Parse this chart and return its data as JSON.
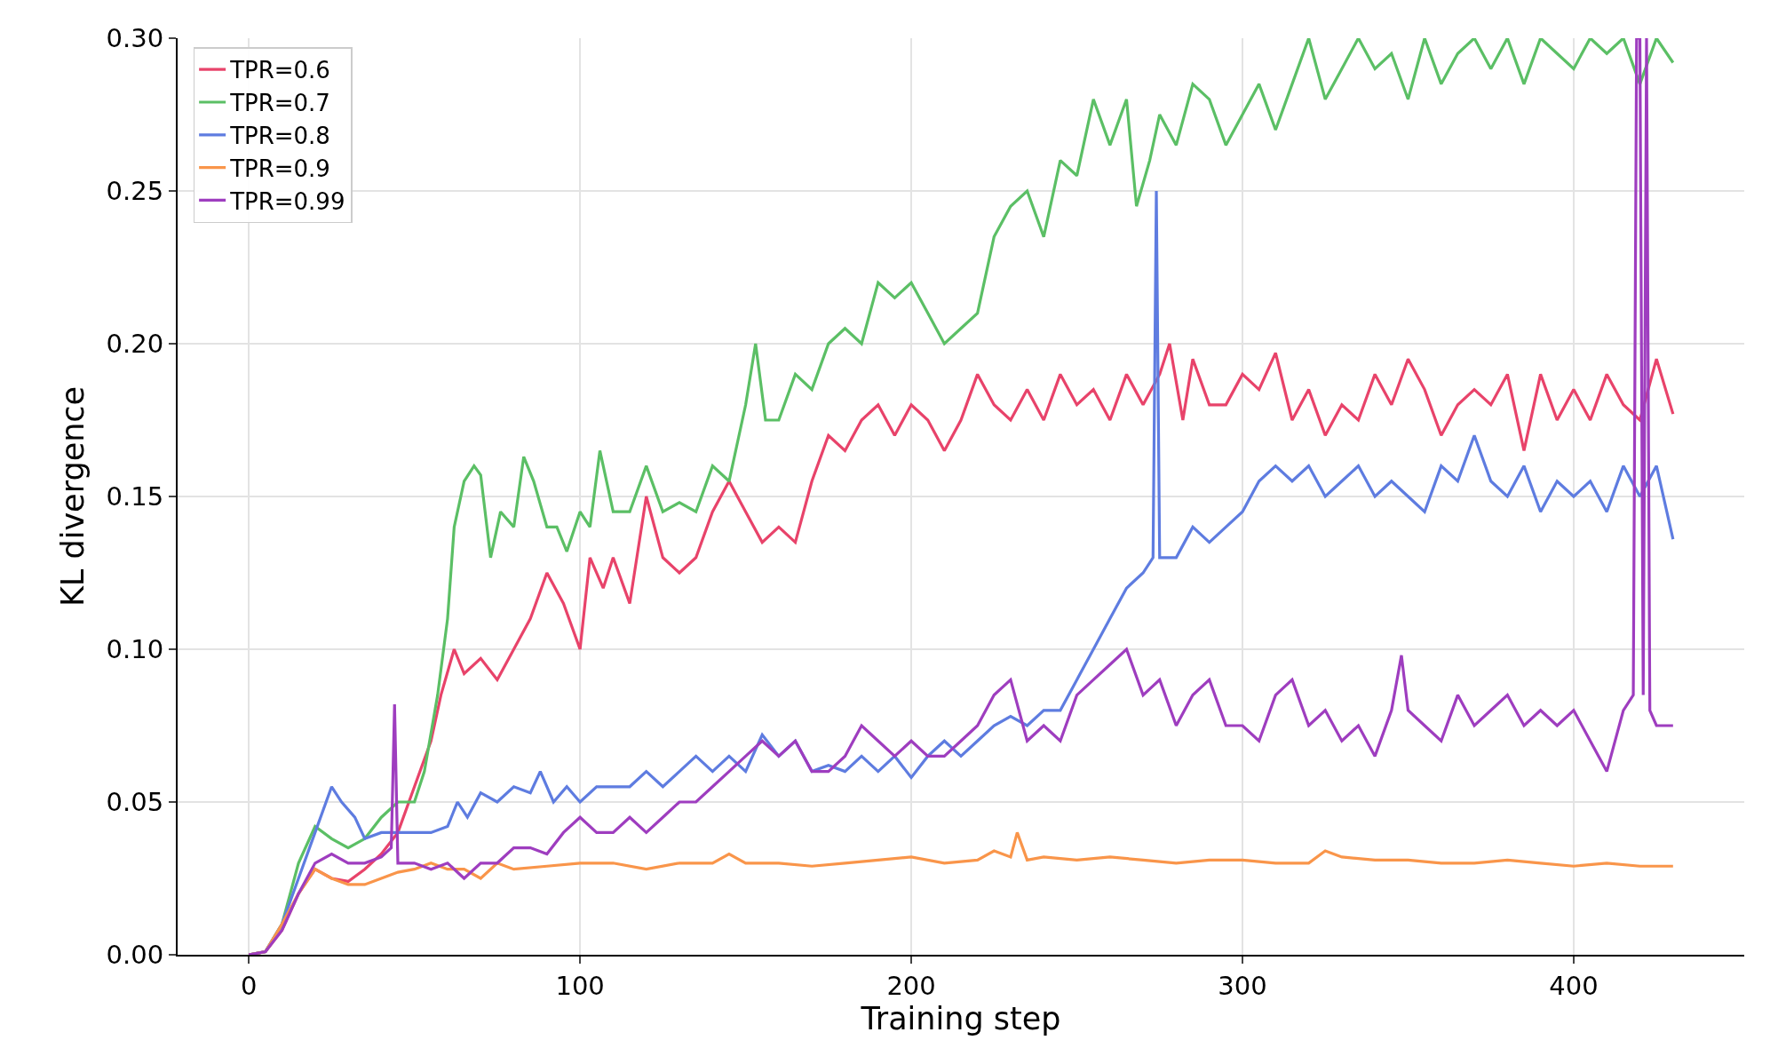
{
  "chart_data": {
    "type": "line",
    "xlabel": "Training step",
    "ylabel": "KL divergence",
    "xlim": [
      -21.5,
      451.5
    ],
    "xticks": [
      0,
      100,
      200,
      300,
      400
    ],
    "ylim": [
      0,
      0.3
    ],
    "yticks": [
      {
        "value": 0,
        "label": "0.00"
      },
      {
        "value": 0.05,
        "label": "0.05"
      },
      {
        "value": 0.1,
        "label": "0.10"
      },
      {
        "value": 0.15,
        "label": "0.15"
      },
      {
        "value": 0.2,
        "label": "0.20"
      },
      {
        "value": 0.25,
        "label": "0.25"
      },
      {
        "value": 0.3,
        "label": "0.30"
      }
    ],
    "grid": true,
    "legend": "top left",
    "line_style": "solid",
    "series": [
      {
        "name": "TPR=0.6",
        "color": "#e8436a",
        "x": [
          0,
          5,
          10,
          15,
          20,
          25,
          30,
          35,
          40,
          45,
          50,
          55,
          58,
          62,
          65,
          70,
          75,
          80,
          85,
          90,
          95,
          100,
          103,
          107,
          110,
          115,
          120,
          125,
          130,
          135,
          140,
          145,
          150,
          155,
          160,
          165,
          170,
          175,
          180,
          185,
          190,
          195,
          200,
          205,
          210,
          215,
          220,
          225,
          230,
          235,
          240,
          245,
          250,
          255,
          260,
          265,
          270,
          275,
          278,
          282,
          285,
          290,
          295,
          300,
          305,
          310,
          315,
          320,
          325,
          330,
          335,
          340,
          345,
          350,
          355,
          360,
          365,
          370,
          375,
          380,
          385,
          390,
          395,
          400,
          405,
          410,
          415,
          420,
          425,
          430
        ],
        "values": [
          0,
          0.001,
          0.008,
          0.02,
          0.028,
          0.025,
          0.024,
          0.028,
          0.033,
          0.04,
          0.055,
          0.07,
          0.085,
          0.1,
          0.092,
          0.097,
          0.09,
          0.1,
          0.11,
          0.125,
          0.115,
          0.1,
          0.13,
          0.12,
          0.13,
          0.115,
          0.15,
          0.13,
          0.125,
          0.13,
          0.145,
          0.155,
          0.145,
          0.135,
          0.14,
          0.135,
          0.155,
          0.17,
          0.165,
          0.175,
          0.18,
          0.17,
          0.18,
          0.175,
          0.165,
          0.175,
          0.19,
          0.18,
          0.175,
          0.185,
          0.175,
          0.19,
          0.18,
          0.185,
          0.175,
          0.19,
          0.18,
          0.19,
          0.2,
          0.175,
          0.195,
          0.18,
          0.18,
          0.19,
          0.185,
          0.197,
          0.175,
          0.185,
          0.17,
          0.18,
          0.175,
          0.19,
          0.18,
          0.195,
          0.185,
          0.17,
          0.18,
          0.185,
          0.18,
          0.19,
          0.165,
          0.19,
          0.175,
          0.185,
          0.175,
          0.19,
          0.18,
          0.175,
          0.195,
          0.177
        ]
      },
      {
        "name": "TPR=0.7",
        "color": "#5bbf65",
        "x": [
          0,
          5,
          10,
          15,
          20,
          25,
          30,
          35,
          40,
          45,
          50,
          53,
          57,
          60,
          62,
          65,
          68,
          70,
          73,
          76,
          80,
          83,
          86,
          90,
          93,
          96,
          100,
          103,
          106,
          110,
          115,
          120,
          125,
          130,
          135,
          140,
          145,
          150,
          153,
          156,
          160,
          165,
          170,
          175,
          180,
          185,
          190,
          195,
          200,
          205,
          210,
          215,
          220,
          225,
          230,
          235,
          240,
          245,
          250,
          255,
          260,
          265,
          268,
          272,
          275,
          280,
          285,
          290,
          295,
          300,
          305,
          310,
          315,
          320,
          325,
          330,
          335,
          340,
          345,
          350,
          355,
          360,
          365,
          370,
          375,
          380,
          385,
          390,
          395,
          400,
          405,
          410,
          415,
          420,
          425,
          430
        ],
        "values": [
          0,
          0.001,
          0.01,
          0.03,
          0.042,
          0.038,
          0.035,
          0.038,
          0.045,
          0.05,
          0.05,
          0.06,
          0.085,
          0.11,
          0.14,
          0.155,
          0.16,
          0.157,
          0.13,
          0.145,
          0.14,
          0.163,
          0.155,
          0.14,
          0.14,
          0.132,
          0.145,
          0.14,
          0.165,
          0.145,
          0.145,
          0.16,
          0.145,
          0.148,
          0.145,
          0.16,
          0.155,
          0.18,
          0.2,
          0.175,
          0.175,
          0.19,
          0.185,
          0.2,
          0.205,
          0.2,
          0.22,
          0.215,
          0.22,
          0.21,
          0.2,
          0.205,
          0.21,
          0.235,
          0.245,
          0.25,
          0.235,
          0.26,
          0.255,
          0.28,
          0.265,
          0.28,
          0.245,
          0.26,
          0.275,
          0.265,
          0.285,
          0.28,
          0.265,
          0.275,
          0.285,
          0.27,
          0.285,
          0.3,
          0.28,
          0.29,
          0.3,
          0.29,
          0.295,
          0.28,
          0.3,
          0.285,
          0.295,
          0.3,
          0.29,
          0.3,
          0.285,
          0.3,
          0.295,
          0.29,
          0.3,
          0.295,
          0.3,
          0.285,
          0.3,
          0.292
        ]
      },
      {
        "name": "TPR=0.8",
        "color": "#5e7ce0",
        "x": [
          0,
          5,
          10,
          15,
          20,
          25,
          28,
          32,
          35,
          40,
          45,
          50,
          55,
          60,
          63,
          66,
          70,
          75,
          80,
          85,
          88,
          92,
          96,
          100,
          105,
          110,
          115,
          120,
          125,
          130,
          135,
          140,
          145,
          150,
          155,
          160,
          165,
          170,
          175,
          180,
          185,
          190,
          195,
          200,
          205,
          210,
          215,
          220,
          225,
          230,
          235,
          240,
          245,
          250,
          255,
          260,
          265,
          270,
          273,
          274,
          275,
          280,
          285,
          290,
          295,
          300,
          305,
          310,
          315,
          320,
          325,
          330,
          335,
          340,
          345,
          350,
          355,
          360,
          365,
          370,
          375,
          380,
          385,
          390,
          395,
          400,
          405,
          410,
          415,
          420,
          425,
          430
        ],
        "values": [
          0,
          0.001,
          0.01,
          0.025,
          0.04,
          0.055,
          0.05,
          0.045,
          0.038,
          0.04,
          0.04,
          0.04,
          0.04,
          0.042,
          0.05,
          0.045,
          0.053,
          0.05,
          0.055,
          0.053,
          0.06,
          0.05,
          0.055,
          0.05,
          0.055,
          0.055,
          0.055,
          0.06,
          0.055,
          0.06,
          0.065,
          0.06,
          0.065,
          0.06,
          0.072,
          0.065,
          0.07,
          0.06,
          0.062,
          0.06,
          0.065,
          0.06,
          0.065,
          0.058,
          0.065,
          0.07,
          0.065,
          0.07,
          0.075,
          0.078,
          0.075,
          0.08,
          0.08,
          0.09,
          0.1,
          0.11,
          0.12,
          0.125,
          0.13,
          0.25,
          0.13,
          0.13,
          0.14,
          0.135,
          0.14,
          0.145,
          0.155,
          0.16,
          0.155,
          0.16,
          0.15,
          0.155,
          0.16,
          0.15,
          0.155,
          0.15,
          0.145,
          0.16,
          0.155,
          0.17,
          0.155,
          0.15,
          0.16,
          0.145,
          0.155,
          0.15,
          0.155,
          0.145,
          0.16,
          0.15,
          0.16,
          0.136
        ]
      },
      {
        "name": "TPR=0.9",
        "color": "#f9954a",
        "x": [
          0,
          5,
          10,
          15,
          20,
          25,
          30,
          35,
          40,
          45,
          50,
          55,
          60,
          65,
          70,
          75,
          80,
          90,
          100,
          110,
          120,
          130,
          140,
          145,
          150,
          160,
          170,
          180,
          190,
          200,
          210,
          220,
          225,
          230,
          232,
          235,
          240,
          250,
          260,
          270,
          280,
          290,
          300,
          310,
          320,
          325,
          330,
          340,
          350,
          360,
          370,
          380,
          390,
          400,
          410,
          420,
          430
        ],
        "values": [
          0,
          0.001,
          0.01,
          0.02,
          0.028,
          0.025,
          0.023,
          0.023,
          0.025,
          0.027,
          0.028,
          0.03,
          0.028,
          0.028,
          0.025,
          0.03,
          0.028,
          0.029,
          0.03,
          0.03,
          0.028,
          0.03,
          0.03,
          0.033,
          0.03,
          0.03,
          0.029,
          0.03,
          0.031,
          0.032,
          0.03,
          0.031,
          0.034,
          0.032,
          0.04,
          0.031,
          0.032,
          0.031,
          0.032,
          0.031,
          0.03,
          0.031,
          0.031,
          0.03,
          0.03,
          0.034,
          0.032,
          0.031,
          0.031,
          0.03,
          0.03,
          0.031,
          0.03,
          0.029,
          0.03,
          0.029,
          0.029
        ]
      },
      {
        "name": "TPR=0.99",
        "color": "#9e3dbf",
        "x": [
          0,
          5,
          10,
          15,
          20,
          25,
          30,
          35,
          40,
          43,
          44,
          45,
          50,
          55,
          60,
          65,
          70,
          75,
          80,
          85,
          90,
          95,
          100,
          105,
          110,
          115,
          120,
          125,
          130,
          135,
          140,
          145,
          150,
          155,
          160,
          165,
          170,
          175,
          180,
          185,
          190,
          195,
          200,
          205,
          210,
          215,
          220,
          225,
          230,
          235,
          240,
          245,
          250,
          255,
          260,
          265,
          270,
          275,
          280,
          285,
          290,
          295,
          300,
          305,
          310,
          315,
          320,
          325,
          330,
          335,
          340,
          345,
          348,
          350,
          355,
          360,
          365,
          370,
          375,
          380,
          385,
          390,
          395,
          400,
          405,
          410,
          415,
          418,
          419,
          420,
          421,
          422,
          423,
          425,
          430
        ],
        "values": [
          0,
          0.001,
          0.008,
          0.02,
          0.03,
          0.033,
          0.03,
          0.03,
          0.032,
          0.035,
          0.082,
          0.03,
          0.03,
          0.028,
          0.03,
          0.025,
          0.03,
          0.03,
          0.035,
          0.035,
          0.033,
          0.04,
          0.045,
          0.04,
          0.04,
          0.045,
          0.04,
          0.045,
          0.05,
          0.05,
          0.055,
          0.06,
          0.065,
          0.07,
          0.065,
          0.07,
          0.06,
          0.06,
          0.065,
          0.075,
          0.07,
          0.065,
          0.07,
          0.065,
          0.065,
          0.07,
          0.075,
          0.085,
          0.09,
          0.07,
          0.075,
          0.07,
          0.085,
          0.09,
          0.095,
          0.1,
          0.085,
          0.09,
          0.075,
          0.085,
          0.09,
          0.075,
          0.075,
          0.07,
          0.085,
          0.09,
          0.075,
          0.08,
          0.07,
          0.075,
          0.065,
          0.08,
          0.098,
          0.08,
          0.075,
          0.07,
          0.085,
          0.075,
          0.08,
          0.085,
          0.075,
          0.08,
          0.075,
          0.08,
          0.07,
          0.06,
          0.08,
          0.085,
          0.3,
          0.3,
          0.085,
          0.3,
          0.08,
          0.075,
          0.075
        ]
      }
    ]
  }
}
